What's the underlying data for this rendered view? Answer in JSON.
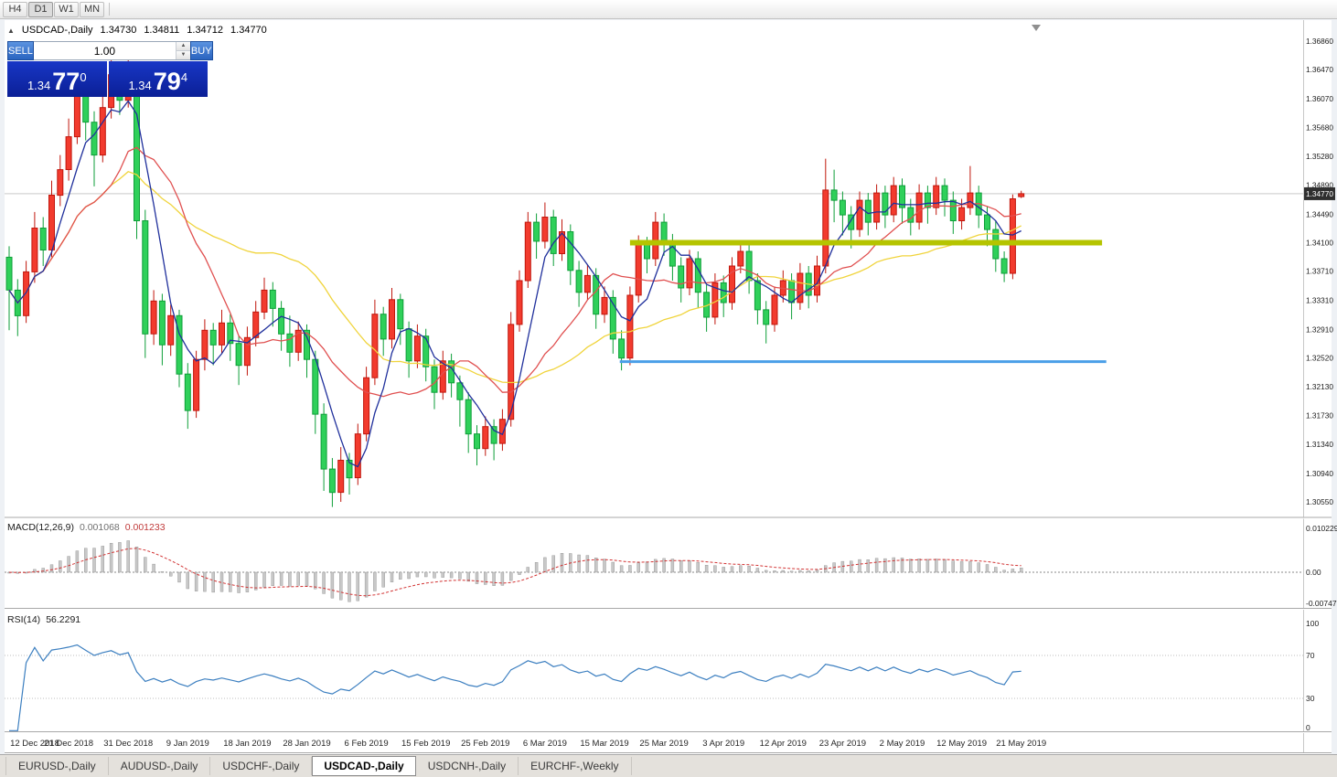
{
  "toolbar": {
    "timeframes": [
      "H4",
      "D1",
      "W1",
      "MN"
    ],
    "active": "D1"
  },
  "icons": {
    "panel_toggle": "▲",
    "volume_up": "▲",
    "volume_down": "▼"
  },
  "chart_header": {
    "symbol": "USDCAD-,Daily",
    "open": "1.34730",
    "high": "1.34811",
    "low": "1.34712",
    "close": "1.34770"
  },
  "trade_panel": {
    "sell_label": "SELL",
    "buy_label": "BUY",
    "volume": "1.00",
    "sell_price": {
      "prefix": "1.34",
      "big": "77",
      "sup": "0"
    },
    "buy_price": {
      "prefix": "1.34",
      "big": "79",
      "sup": "4"
    }
  },
  "indicators": {
    "macd": {
      "label": "MACD(12,26,9)",
      "value_main": "0.001068",
      "value_signal": "0.001233"
    },
    "rsi": {
      "label": "RSI(14)",
      "value": "56.2291"
    }
  },
  "tabs": [
    {
      "label": "EURUSD-,Daily",
      "active": false
    },
    {
      "label": "AUDUSD-,Daily",
      "active": false
    },
    {
      "label": "USDCHF-,Daily",
      "active": false
    },
    {
      "label": "USDCAD-,Daily",
      "active": true
    },
    {
      "label": "USDCNH-,Daily",
      "active": false
    },
    {
      "label": "EURCHF-,Weekly",
      "active": false
    }
  ],
  "chart_data": {
    "type": "candlestick",
    "symbol": "USDCAD",
    "timeframe": "Daily",
    "current_bid": 1.3477,
    "current_ask": 1.34794,
    "price_axis_ticks": [
      "1.36860",
      "1.36470",
      "1.36070",
      "1.35680",
      "1.35280",
      "1.34890",
      "1.34490",
      "1.34100",
      "1.33710",
      "1.33310",
      "1.32910",
      "1.32520",
      "1.32130",
      "1.31730",
      "1.31340",
      "1.30940",
      "1.30550"
    ],
    "date_ticks": [
      "12 Dec 2018",
      "21 Dec 2018",
      "31 Dec 2018",
      "9 Jan 2019",
      "18 Jan 2019",
      "28 Jan 2019",
      "6 Feb 2019",
      "15 Feb 2019",
      "25 Feb 2019",
      "6 Mar 2019",
      "15 Mar 2019",
      "25 Mar 2019",
      "3 Apr 2019",
      "12 Apr 2019",
      "23 Apr 2019",
      "2 May 2019",
      "12 May 2019",
      "21 May 2019"
    ],
    "tick_interval_candles": 7,
    "candles": [
      [
        1.339,
        1.3405,
        1.329,
        1.3345
      ],
      [
        1.3345,
        1.336,
        1.3282,
        1.331
      ],
      [
        1.331,
        1.3385,
        1.33,
        1.337
      ],
      [
        1.337,
        1.3452,
        1.3355,
        1.343
      ],
      [
        1.343,
        1.3445,
        1.3378,
        1.34
      ],
      [
        1.34,
        1.3495,
        1.339,
        1.3475
      ],
      [
        1.3475,
        1.353,
        1.346,
        1.351
      ],
      [
        1.351,
        1.358,
        1.3495,
        1.3555
      ],
      [
        1.3555,
        1.3648,
        1.3545,
        1.362
      ],
      [
        1.362,
        1.3635,
        1.355,
        1.3575
      ],
      [
        1.3575,
        1.359,
        1.3487,
        1.353
      ],
      [
        1.353,
        1.361,
        1.352,
        1.3595
      ],
      [
        1.3595,
        1.3662,
        1.358,
        1.364
      ],
      [
        1.364,
        1.3655,
        1.3585,
        1.3605
      ],
      [
        1.3605,
        1.3665,
        1.3595,
        1.365
      ],
      [
        1.3648,
        1.3658,
        1.3415,
        1.344
      ],
      [
        1.344,
        1.3455,
        1.3252,
        1.3285
      ],
      [
        1.3285,
        1.3345,
        1.327,
        1.333
      ],
      [
        1.333,
        1.334,
        1.3242,
        1.327
      ],
      [
        1.327,
        1.3325,
        1.3255,
        1.331
      ],
      [
        1.331,
        1.3318,
        1.3212,
        1.323
      ],
      [
        1.323,
        1.3245,
        1.3155,
        1.318
      ],
      [
        1.318,
        1.3262,
        1.317,
        1.325
      ],
      [
        1.325,
        1.3305,
        1.3235,
        1.329
      ],
      [
        1.329,
        1.33,
        1.3242,
        1.327
      ],
      [
        1.327,
        1.3318,
        1.3258,
        1.33
      ],
      [
        1.33,
        1.3312,
        1.3248,
        1.3272
      ],
      [
        1.3272,
        1.3282,
        1.3215,
        1.3242
      ],
      [
        1.3242,
        1.3295,
        1.3228,
        1.328
      ],
      [
        1.328,
        1.333,
        1.3268,
        1.3315
      ],
      [
        1.3315,
        1.3362,
        1.3305,
        1.3345
      ],
      [
        1.3345,
        1.3356,
        1.3295,
        1.332
      ],
      [
        1.332,
        1.333,
        1.3262,
        1.3285
      ],
      [
        1.3285,
        1.331,
        1.324,
        1.326
      ],
      [
        1.326,
        1.3302,
        1.3248,
        1.329
      ],
      [
        1.329,
        1.3298,
        1.3225,
        1.325
      ],
      [
        1.325,
        1.3262,
        1.3148,
        1.3175
      ],
      [
        1.3175,
        1.319,
        1.307,
        1.31
      ],
      [
        1.31,
        1.3115,
        1.3048,
        1.3068
      ],
      [
        1.3068,
        1.313,
        1.3055,
        1.3112
      ],
      [
        1.3112,
        1.3122,
        1.3065,
        1.3088
      ],
      [
        1.3088,
        1.3162,
        1.3078,
        1.3148
      ],
      [
        1.3148,
        1.324,
        1.3138,
        1.3225
      ],
      [
        1.3225,
        1.3332,
        1.3215,
        1.3312
      ],
      [
        1.3312,
        1.3322,
        1.3255,
        1.3278
      ],
      [
        1.3278,
        1.3348,
        1.3265,
        1.3332
      ],
      [
        1.3332,
        1.334,
        1.327,
        1.3292
      ],
      [
        1.3292,
        1.3302,
        1.3225,
        1.3248
      ],
      [
        1.3248,
        1.3298,
        1.3238,
        1.3282
      ],
      [
        1.3282,
        1.3292,
        1.322,
        1.324
      ],
      [
        1.324,
        1.325,
        1.3182,
        1.3205
      ],
      [
        1.3205,
        1.3262,
        1.3195,
        1.3248
      ],
      [
        1.3248,
        1.3258,
        1.3198,
        1.3218
      ],
      [
        1.3218,
        1.3228,
        1.3158,
        1.3195
      ],
      [
        1.3195,
        1.3205,
        1.3122,
        1.3148
      ],
      [
        1.3148,
        1.316,
        1.3105,
        1.3128
      ],
      [
        1.3128,
        1.3172,
        1.3118,
        1.3158
      ],
      [
        1.3158,
        1.3168,
        1.3112,
        1.3135
      ],
      [
        1.3135,
        1.3182,
        1.3125,
        1.3168
      ],
      [
        1.3168,
        1.3315,
        1.3158,
        1.3298
      ],
      [
        1.3298,
        1.3372,
        1.3288,
        1.3358
      ],
      [
        1.3358,
        1.3452,
        1.3348,
        1.3438
      ],
      [
        1.3438,
        1.345,
        1.3388,
        1.3412
      ],
      [
        1.3412,
        1.3465,
        1.3402,
        1.3445
      ],
      [
        1.3445,
        1.3455,
        1.3378,
        1.3395
      ],
      [
        1.3395,
        1.3442,
        1.3385,
        1.3425
      ],
      [
        1.3425,
        1.3435,
        1.3352,
        1.3372
      ],
      [
        1.3372,
        1.3385,
        1.3322,
        1.3342
      ],
      [
        1.3342,
        1.338,
        1.3332,
        1.3365
      ],
      [
        1.3365,
        1.3375,
        1.3292,
        1.3312
      ],
      [
        1.3312,
        1.335,
        1.33,
        1.3335
      ],
      [
        1.3335,
        1.3345,
        1.3258,
        1.3278
      ],
      [
        1.3278,
        1.329,
        1.3235,
        1.3252
      ],
      [
        1.3252,
        1.335,
        1.3242,
        1.3338
      ],
      [
        1.3338,
        1.342,
        1.3328,
        1.3408
      ],
      [
        1.3408,
        1.3418,
        1.3368,
        1.3388
      ],
      [
        1.3388,
        1.3452,
        1.3378,
        1.3438
      ],
      [
        1.3438,
        1.345,
        1.3392,
        1.3412
      ],
      [
        1.3412,
        1.3422,
        1.3358,
        1.3378
      ],
      [
        1.3378,
        1.339,
        1.3328,
        1.3348
      ],
      [
        1.3348,
        1.34,
        1.3338,
        1.3388
      ],
      [
        1.3388,
        1.3398,
        1.332,
        1.3342
      ],
      [
        1.3342,
        1.3352,
        1.3288,
        1.3308
      ],
      [
        1.3308,
        1.3368,
        1.3298,
        1.3355
      ],
      [
        1.3355,
        1.3365,
        1.3308,
        1.3328
      ],
      [
        1.3328,
        1.339,
        1.3318,
        1.3378
      ],
      [
        1.3378,
        1.3408,
        1.3368,
        1.3398
      ],
      [
        1.3398,
        1.3408,
        1.334,
        1.3358
      ],
      [
        1.3358,
        1.3368,
        1.3298,
        1.3318
      ],
      [
        1.3318,
        1.333,
        1.3272,
        1.3298
      ],
      [
        1.3298,
        1.335,
        1.3288,
        1.3338
      ],
      [
        1.3338,
        1.3372,
        1.3328,
        1.3358
      ],
      [
        1.3358,
        1.3368,
        1.3305,
        1.3328
      ],
      [
        1.3328,
        1.3382,
        1.3318,
        1.3368
      ],
      [
        1.3368,
        1.3378,
        1.332,
        1.3338
      ],
      [
        1.3338,
        1.3392,
        1.3328,
        1.3378
      ],
      [
        1.3378,
        1.3525,
        1.3368,
        1.3482
      ],
      [
        1.3482,
        1.351,
        1.3438,
        1.3468
      ],
      [
        1.3468,
        1.348,
        1.342,
        1.3448
      ],
      [
        1.3448,
        1.346,
        1.3402,
        1.3428
      ],
      [
        1.3428,
        1.348,
        1.3418,
        1.3468
      ],
      [
        1.3468,
        1.3478,
        1.342,
        1.3438
      ],
      [
        1.3438,
        1.349,
        1.3428,
        1.3478
      ],
      [
        1.3478,
        1.3488,
        1.343,
        1.3448
      ],
      [
        1.3448,
        1.35,
        1.3438,
        1.3488
      ],
      [
        1.3488,
        1.3498,
        1.3436,
        1.3458
      ],
      [
        1.3458,
        1.347,
        1.342,
        1.3438
      ],
      [
        1.3438,
        1.349,
        1.3428,
        1.3478
      ],
      [
        1.3478,
        1.3488,
        1.3436,
        1.3458
      ],
      [
        1.3458,
        1.35,
        1.3448,
        1.3488
      ],
      [
        1.3488,
        1.3498,
        1.3446,
        1.3468
      ],
      [
        1.3468,
        1.348,
        1.3422,
        1.344
      ],
      [
        1.344,
        1.347,
        1.3428,
        1.3458
      ],
      [
        1.3458,
        1.3515,
        1.3448,
        1.3478
      ],
      [
        1.3478,
        1.3488,
        1.343,
        1.3448
      ],
      [
        1.3448,
        1.346,
        1.3405,
        1.3428
      ],
      [
        1.3428,
        1.344,
        1.337,
        1.3388
      ],
      [
        1.3388,
        1.3398,
        1.3356,
        1.3368
      ],
      [
        1.3368,
        1.3476,
        1.336,
        1.347
      ],
      [
        1.3473,
        1.34811,
        1.34712,
        1.3477
      ]
    ],
    "moving_averages": [
      {
        "name": "ma-fast",
        "period": 5,
        "color": "#20309c"
      },
      {
        "name": "ma-mid",
        "period": 13,
        "color": "#e05050"
      },
      {
        "name": "ma-slow",
        "period": 30,
        "color": "#f0d43c"
      }
    ],
    "hlines": [
      {
        "name": "resistance-trendline",
        "price": 1.341,
        "color": "#b5c400",
        "width": 6,
        "start_index": 73,
        "end_index": 128.5
      },
      {
        "name": "support-trendline",
        "price": 1.3247,
        "color": "#4a9fe8",
        "width": 3,
        "start_index": 71.8,
        "end_index": 129
      }
    ],
    "style": {
      "bull": "#f23b2e",
      "bull_border": "#c0160c",
      "bear": "#2fd05a",
      "bear_border": "#0e9e38",
      "bid_line": "#c9c9c9"
    },
    "macd": {
      "params": [
        12,
        26,
        9
      ],
      "axis_labels": [
        "0.010229",
        "0.00",
        "-0.007477"
      ],
      "colors": {
        "histogram": "#c8c8c8",
        "histogram_border": "#8e8e8e",
        "signal": "#d23333"
      }
    },
    "rsi": {
      "period": 14,
      "axis_labels": [
        "100",
        "70",
        "30",
        "0"
      ],
      "levels": [
        70,
        30
      ],
      "color": "#3c7fc0"
    }
  }
}
